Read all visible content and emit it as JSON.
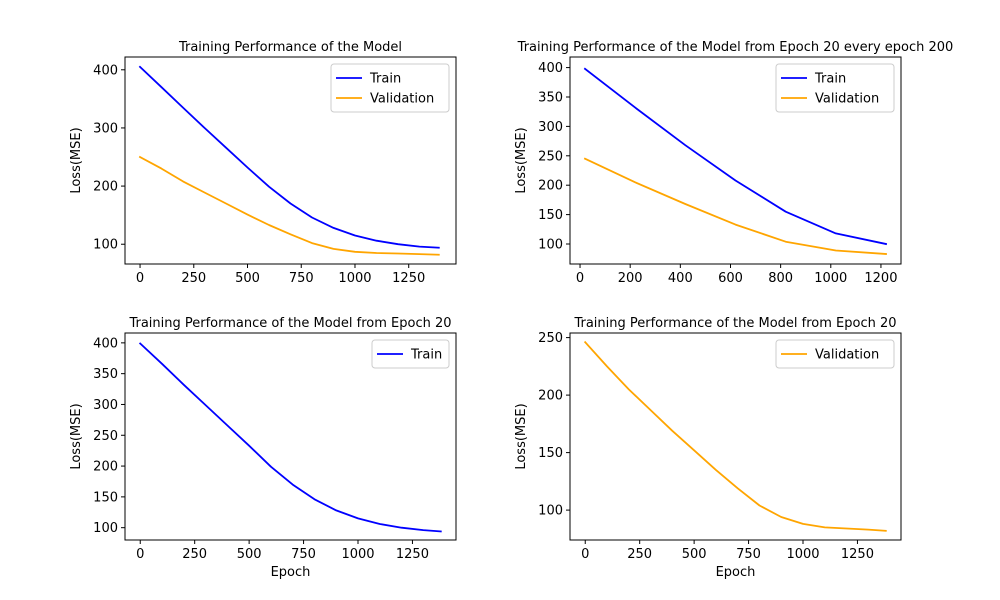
{
  "chart_data": [
    {
      "type": "line",
      "title": "Training Performance of the Model",
      "xlabel": "",
      "ylabel": "Loss(MSE)",
      "xlim": [
        -70,
        1470
      ],
      "ylim": [
        66,
        422
      ],
      "xticks": [
        0,
        250,
        500,
        750,
        1000,
        1250
      ],
      "yticks": [
        100,
        200,
        300,
        400
      ],
      "legend": "top-right",
      "series": [
        {
          "name": "Train",
          "color": "#0000ff",
          "x": [
            0,
            100,
            200,
            300,
            400,
            500,
            600,
            700,
            800,
            900,
            1000,
            1100,
            1200,
            1300,
            1390
          ],
          "y": [
            405,
            370,
            335,
            300,
            266,
            232,
            199,
            170,
            146,
            128,
            115,
            106,
            100,
            96,
            94
          ]
        },
        {
          "name": "Validation",
          "color": "#ffa500",
          "x": [
            0,
            100,
            200,
            300,
            400,
            500,
            600,
            700,
            800,
            900,
            1000,
            1100,
            1200,
            1300,
            1390
          ],
          "y": [
            250,
            230,
            208,
            189,
            170,
            151,
            133,
            117,
            102,
            92,
            87,
            85,
            84,
            83,
            82
          ]
        }
      ]
    },
    {
      "type": "line",
      "title": "Training Performance of the Model from Epoch 20 every epoch 200",
      "xlabel": "",
      "ylabel": "Loss(MSE)",
      "xlim": [
        -40,
        1280
      ],
      "ylim": [
        66,
        418
      ],
      "xticks": [
        0,
        200,
        400,
        600,
        800,
        1000,
        1200
      ],
      "yticks": [
        100,
        150,
        200,
        250,
        300,
        350,
        400
      ],
      "legend": "top-right",
      "series": [
        {
          "name": "Train",
          "color": "#0000ff",
          "x": [
            20,
            220,
            420,
            620,
            820,
            1020,
            1220
          ],
          "y": [
            398,
            332,
            268,
            208,
            155,
            118,
            100
          ]
        },
        {
          "name": "Validation",
          "color": "#ffa500",
          "x": [
            20,
            220,
            420,
            620,
            820,
            1020,
            1220
          ],
          "y": [
            245,
            205,
            168,
            133,
            104,
            89,
            83
          ]
        }
      ]
    },
    {
      "type": "line",
      "title": "Training Performance of the Model from Epoch 20",
      "xlabel": "Epoch",
      "ylabel": "Loss(MSE)",
      "xlim": [
        -70,
        1450
      ],
      "ylim": [
        80,
        416
      ],
      "xticks": [
        0,
        250,
        500,
        750,
        1000,
        1250
      ],
      "yticks": [
        100,
        150,
        200,
        250,
        300,
        350,
        400
      ],
      "legend": "top-right",
      "series": [
        {
          "name": "Train",
          "color": "#0000ff",
          "x": [
            0,
            100,
            200,
            300,
            400,
            500,
            600,
            700,
            800,
            900,
            1000,
            1100,
            1200,
            1300,
            1380
          ],
          "y": [
            399,
            366,
            332,
            299,
            266,
            233,
            199,
            170,
            146,
            128,
            115,
            106,
            100,
            96,
            94
          ]
        }
      ]
    },
    {
      "type": "line",
      "title": "Training Performance of the Model from Epoch 20",
      "xlabel": "Epoch",
      "ylabel": "Loss(MSE)",
      "xlim": [
        -70,
        1450
      ],
      "ylim": [
        74,
        254
      ],
      "xticks": [
        0,
        250,
        500,
        750,
        1000,
        1250
      ],
      "yticks": [
        100,
        150,
        200,
        250
      ],
      "legend": "top-right",
      "series": [
        {
          "name": "Validation",
          "color": "#ffa500",
          "x": [
            0,
            100,
            200,
            300,
            400,
            500,
            600,
            700,
            800,
            900,
            1000,
            1100,
            1200,
            1300,
            1380
          ],
          "y": [
            246,
            225,
            205,
            187,
            169,
            152,
            135,
            119,
            104,
            94,
            88,
            85,
            84,
            83,
            82
          ]
        }
      ]
    }
  ]
}
